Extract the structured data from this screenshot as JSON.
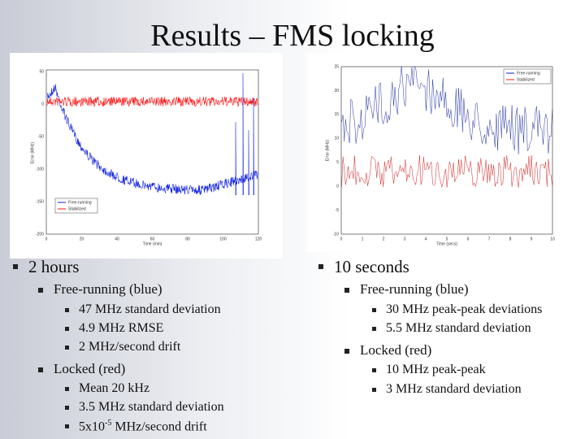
{
  "title": "Results – FMS locking",
  "left_plot": {
    "yticks": [
      "50",
      "0",
      "-50",
      "-100",
      "-150",
      "-200"
    ],
    "xticks": [
      "0",
      "20",
      "40",
      "60",
      "80",
      "100",
      "120"
    ],
    "ylabel": "Error (MHz)",
    "xlabel": "Time (min)",
    "legend": [
      "Free-running",
      "Stabilized"
    ]
  },
  "right_plot": {
    "yticks": [
      "25",
      "20",
      "15",
      "10",
      "5",
      "0",
      "-5",
      "-10"
    ],
    "xticks": [
      "0",
      "1",
      "2",
      "3",
      "4",
      "5",
      "6",
      "7",
      "8",
      "9",
      "10"
    ],
    "ylabel": "Error (MHz)",
    "xlabel": "Time (secs)",
    "legend": [
      "Free-running",
      "Stabilized"
    ]
  },
  "left_column": {
    "heading": "2 hours",
    "groups": [
      {
        "label": "Free-running (blue)",
        "items": [
          "47 MHz standard deviation",
          "4.9 MHz RMSE",
          "2 MHz/second drift"
        ]
      },
      {
        "label": "Locked (red)",
        "items": [
          "Mean 20 kHz",
          "3.5 MHz standard deviation"
        ],
        "last_item": {
          "base": "5x10",
          "sup": "-5",
          "rest": " MHz/second drift"
        }
      }
    ]
  },
  "right_column": {
    "heading": "10 seconds",
    "groups": [
      {
        "label": "Free-running (blue)",
        "items": [
          "30 MHz peak-peak deviations",
          "5.5 MHz standard deviation"
        ]
      },
      {
        "label": "Locked (red)",
        "items": [
          "10 MHz peak-peak",
          "3 MHz standard deviation"
        ]
      }
    ]
  }
}
